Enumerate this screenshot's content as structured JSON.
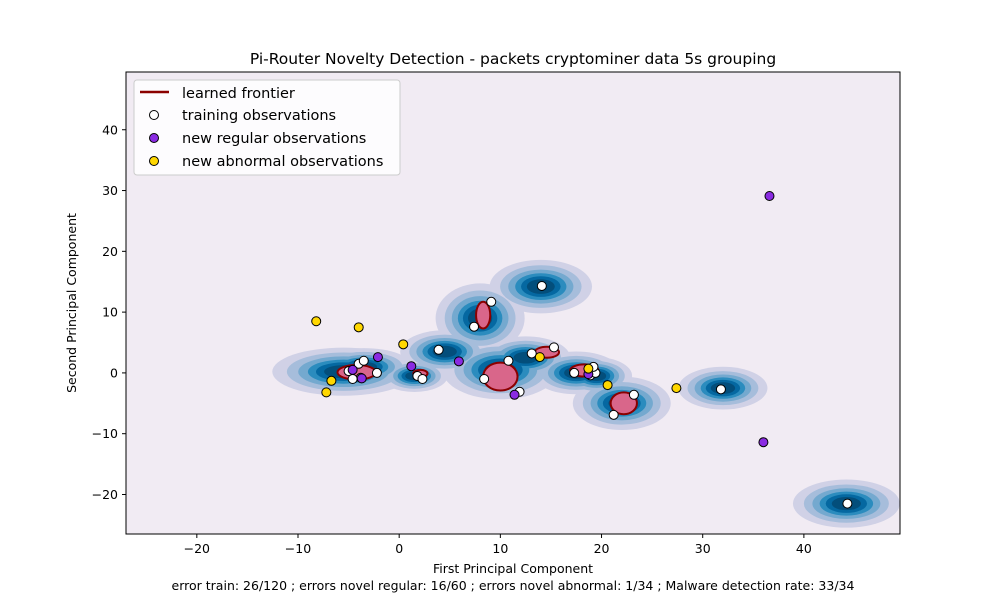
{
  "chart_data": {
    "type": "scatter",
    "title": "Pi-Router Novelty Detection - packets cryptominer data 5s grouping",
    "xlabel": "First Principal Component",
    "ylabel": "Second Principal Component",
    "caption": "error train: 26/120 ; errors novel regular: 16/60 ; errors novel abnormal: 1/34 ; Malware detection rate: 33/34",
    "xlim": [
      -27,
      49.5
    ],
    "ylim": [
      -26.5,
      49.5
    ],
    "x_ticks": [
      -20,
      -10,
      0,
      10,
      20,
      30,
      40
    ],
    "y_ticks": [
      -20,
      -10,
      0,
      10,
      20,
      30,
      40
    ],
    "x_tick_labels": [
      "−20",
      "−10",
      "0",
      "10",
      "20",
      "30",
      "40"
    ],
    "y_tick_labels": [
      "−20",
      "−10",
      "0",
      "10",
      "20",
      "30",
      "40"
    ],
    "grid": false,
    "legend_position": "top-left",
    "background_color": "#f1ebf3",
    "legend": [
      {
        "label": "learned frontier",
        "kind": "line",
        "color": "#8b0000"
      },
      {
        "label": "training observations",
        "kind": "marker",
        "color": "#ffffff"
      },
      {
        "label": "new regular observations",
        "kind": "marker",
        "color": "#8a2be2"
      },
      {
        "label": "new abnormal observations",
        "kind": "marker",
        "color": "#ffd700"
      }
    ],
    "density_colors": [
      "#d0d1e6",
      "#a6bddb",
      "#74a9cf",
      "#2b8cbe",
      "#0568a1",
      "#034e7b"
    ],
    "frontier_fill": "#d9668a",
    "frontier_stroke": "#8b0000",
    "density_clusters": [
      {
        "x": -5.5,
        "y": 0.2,
        "w": 3.2,
        "h": 1.8
      },
      {
        "x": -3.5,
        "y": 1.0,
        "w": 2.2,
        "h": 1.4
      },
      {
        "x": 1.5,
        "y": -0.5,
        "w": 1.5,
        "h": 1.2
      },
      {
        "x": 4.5,
        "y": 3.5,
        "w": 2.0,
        "h": 1.6
      },
      {
        "x": 8.0,
        "y": 9.0,
        "w": 2.0,
        "h": 2.6
      },
      {
        "x": 14.0,
        "y": 14.2,
        "w": 2.3,
        "h": 2.0
      },
      {
        "x": 10.0,
        "y": 0.5,
        "w": 2.6,
        "h": 2.2
      },
      {
        "x": 12.5,
        "y": 2.5,
        "w": 2.0,
        "h": 1.6
      },
      {
        "x": 17.5,
        "y": 0.0,
        "w": 2.0,
        "h": 1.6
      },
      {
        "x": 19.5,
        "y": -0.5,
        "w": 1.6,
        "h": 1.4
      },
      {
        "x": 22.0,
        "y": -5.0,
        "w": 2.2,
        "h": 2.0
      },
      {
        "x": 32.0,
        "y": -2.5,
        "w": 2.0,
        "h": 1.6
      },
      {
        "x": 44.2,
        "y": -21.5,
        "w": 2.4,
        "h": 1.8
      }
    ],
    "frontier_regions": [
      {
        "x": -4.2,
        "y": 0.1,
        "rx": 1.9,
        "ry": 1.2
      },
      {
        "x": 2.1,
        "y": -0.1,
        "rx": 0.7,
        "ry": 0.6
      },
      {
        "x": 8.3,
        "y": 9.5,
        "rx": 0.7,
        "ry": 2.2
      },
      {
        "x": 10.0,
        "y": -0.6,
        "rx": 1.7,
        "ry": 2.3
      },
      {
        "x": 14.6,
        "y": 3.4,
        "rx": 1.2,
        "ry": 0.9
      },
      {
        "x": 18.3,
        "y": 0.4,
        "rx": 1.4,
        "ry": 1.0
      },
      {
        "x": 22.2,
        "y": -5.0,
        "rx": 1.3,
        "ry": 1.8
      }
    ],
    "series": [
      {
        "name": "training observations",
        "color": "#ffffff",
        "points": [
          [
            -4.0,
            1.5
          ],
          [
            -3.5,
            2.0
          ],
          [
            -3.8,
            -0.8
          ],
          [
            -4.6,
            -1.0
          ],
          [
            -2.2,
            0.0
          ],
          [
            -5.0,
            0.3
          ],
          [
            1.8,
            -0.5
          ],
          [
            2.3,
            -1.0
          ],
          [
            3.9,
            3.8
          ],
          [
            7.4,
            7.6
          ],
          [
            9.1,
            11.7
          ],
          [
            14.1,
            14.3
          ],
          [
            8.4,
            -1.0
          ],
          [
            10.8,
            2.0
          ],
          [
            11.9,
            -3.1
          ],
          [
            13.1,
            3.2
          ],
          [
            15.3,
            4.2
          ],
          [
            17.3,
            0.0
          ],
          [
            18.9,
            -0.4
          ],
          [
            19.4,
            0.0
          ],
          [
            19.2,
            1.0
          ],
          [
            21.2,
            -6.9
          ],
          [
            23.2,
            -3.6
          ],
          [
            31.8,
            -2.7
          ],
          [
            44.3,
            -21.5
          ]
        ]
      },
      {
        "name": "new regular observations",
        "color": "#8a2be2",
        "points": [
          [
            -4.6,
            0.5
          ],
          [
            -3.7,
            -0.9
          ],
          [
            -2.1,
            2.6
          ],
          [
            1.2,
            1.1
          ],
          [
            5.9,
            1.9
          ],
          [
            11.4,
            -3.6
          ],
          [
            18.7,
            -0.2
          ],
          [
            36.0,
            -11.4
          ],
          [
            36.6,
            29.1
          ]
        ]
      },
      {
        "name": "new abnormal observations",
        "color": "#ffd700",
        "points": [
          [
            -8.2,
            8.5
          ],
          [
            -4.0,
            7.5
          ],
          [
            -6.7,
            -1.3
          ],
          [
            -7.2,
            -3.2
          ],
          [
            0.4,
            4.7
          ],
          [
            13.9,
            2.6
          ],
          [
            18.7,
            0.7
          ],
          [
            20.6,
            -2.0
          ],
          [
            27.4,
            -2.5
          ]
        ]
      }
    ]
  }
}
